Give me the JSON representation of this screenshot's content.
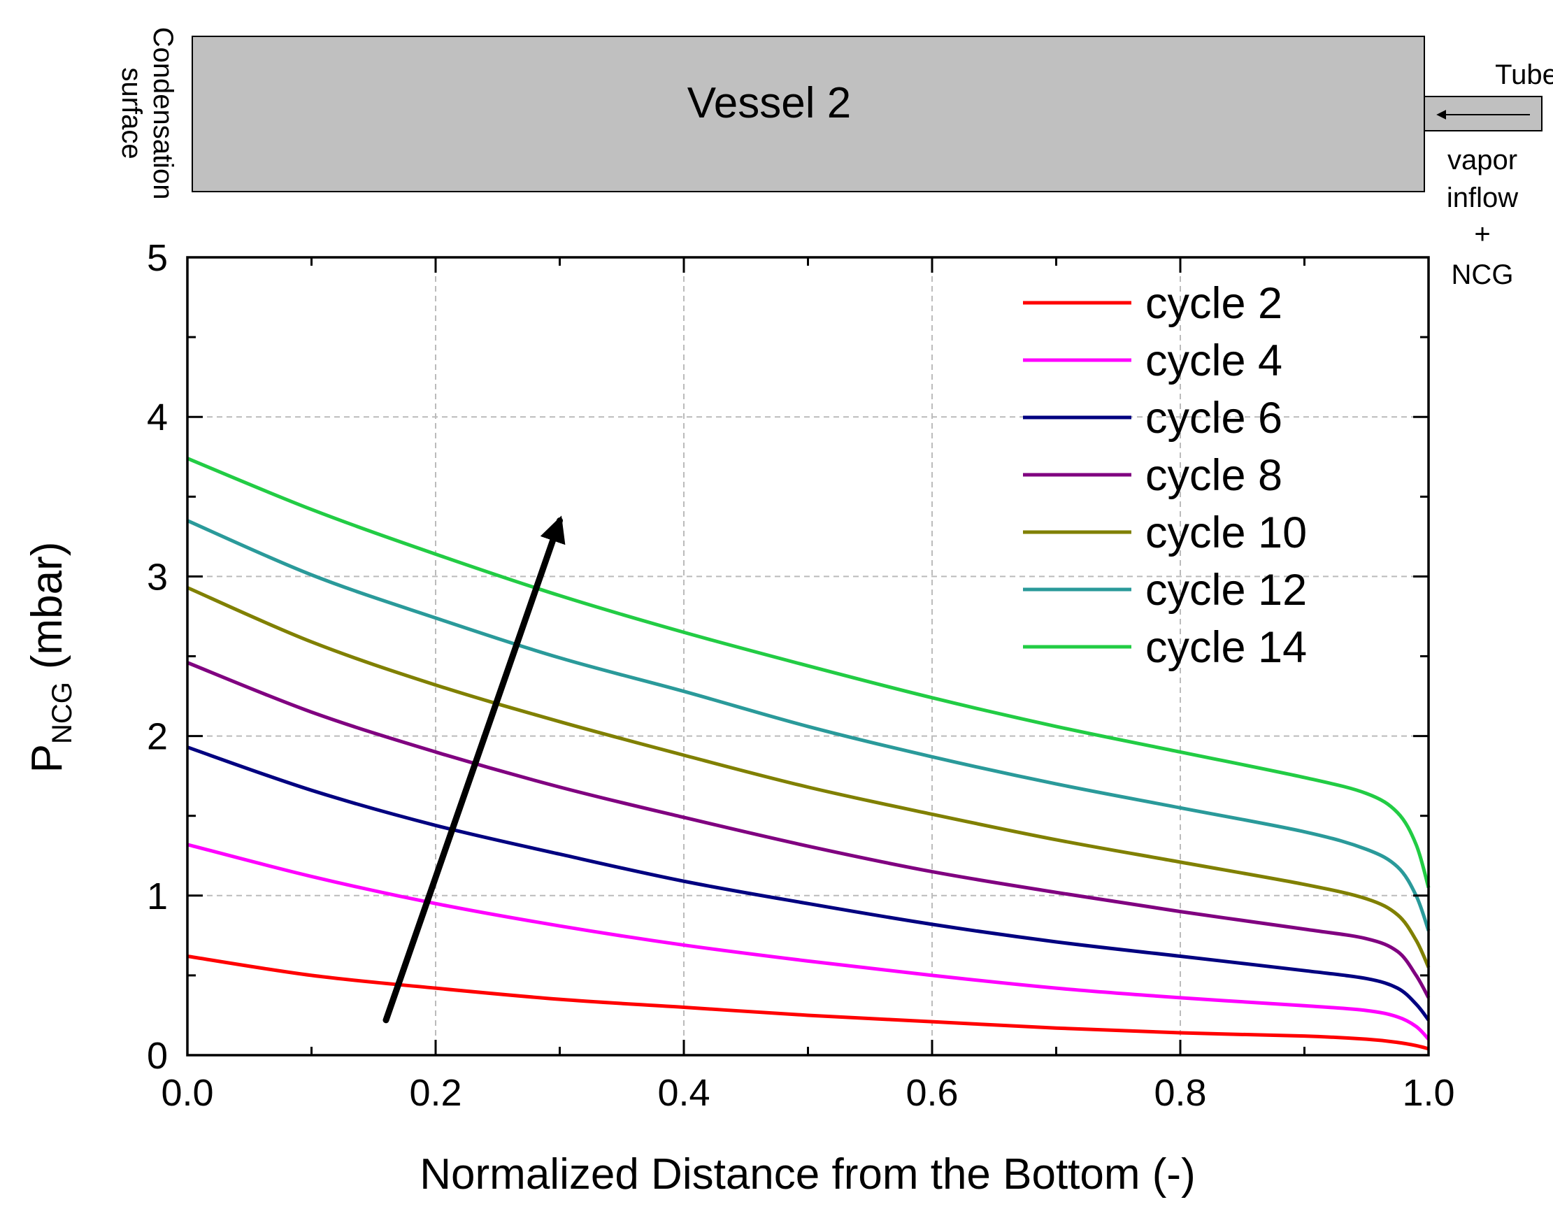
{
  "diagram": {
    "vessel_label": "Vessel 2",
    "condensation_line1": "Condensation",
    "condensation_line2": "surface",
    "tube_label": "Tube",
    "inflow_lines": [
      "vapor",
      "inflow",
      "+",
      "NCG"
    ],
    "colors": {
      "vessel_fill": "#c0c0c0",
      "vessel_stroke": "#000000"
    }
  },
  "chart_data": {
    "type": "line",
    "title": "",
    "xlabel": "Normalized Distance from the Bottom (-)",
    "ylabel_main": "P",
    "ylabel_sub": "NCG",
    "ylabel_unit": "(mbar)",
    "xlim": [
      0,
      1
    ],
    "ylim": [
      0,
      5
    ],
    "x_ticks": [
      "0.0",
      "0.2",
      "0.4",
      "0.6",
      "0.8",
      "1.0"
    ],
    "y_ticks": [
      "0",
      "1",
      "2",
      "3",
      "4",
      "5"
    ],
    "grid": true,
    "legend_position": "top-right",
    "x": [
      0.0,
      0.1,
      0.2,
      0.3,
      0.4,
      0.5,
      0.6,
      0.7,
      0.8,
      0.9,
      0.95,
      0.975,
      0.99,
      1.0
    ],
    "series": [
      {
        "name": "cycle 2",
        "color": "#ff0000",
        "values": [
          0.62,
          0.5,
          0.42,
          0.35,
          0.3,
          0.25,
          0.21,
          0.17,
          0.14,
          0.12,
          0.1,
          0.08,
          0.06,
          0.04
        ]
      },
      {
        "name": "cycle 4",
        "color": "#ff00ff",
        "values": [
          1.32,
          1.12,
          0.95,
          0.81,
          0.69,
          0.59,
          0.5,
          0.42,
          0.36,
          0.31,
          0.28,
          0.24,
          0.18,
          0.1
        ]
      },
      {
        "name": "cycle 6",
        "color": "#000080",
        "values": [
          1.93,
          1.66,
          1.44,
          1.26,
          1.09,
          0.95,
          0.82,
          0.71,
          0.62,
          0.53,
          0.48,
          0.42,
          0.32,
          0.22
        ]
      },
      {
        "name": "cycle 8",
        "color": "#800080",
        "values": [
          2.46,
          2.15,
          1.9,
          1.68,
          1.49,
          1.31,
          1.15,
          1.02,
          0.9,
          0.79,
          0.73,
          0.65,
          0.5,
          0.36
        ]
      },
      {
        "name": "cycle 10",
        "color": "#808000",
        "values": [
          2.93,
          2.59,
          2.32,
          2.09,
          1.88,
          1.68,
          1.51,
          1.35,
          1.21,
          1.07,
          0.98,
          0.88,
          0.72,
          0.55
        ]
      },
      {
        "name": "cycle 12",
        "color": "#2a9a9a",
        "values": [
          3.35,
          3.01,
          2.74,
          2.49,
          2.28,
          2.06,
          1.87,
          1.7,
          1.55,
          1.4,
          1.29,
          1.18,
          1.0,
          0.78
        ]
      },
      {
        "name": "cycle 14",
        "color": "#22cc44",
        "values": [
          3.74,
          3.42,
          3.14,
          2.88,
          2.65,
          2.44,
          2.24,
          2.06,
          1.9,
          1.74,
          1.64,
          1.52,
          1.32,
          1.05
        ]
      }
    ],
    "annotation_arrow": {
      "from": [
        0.16,
        0.22
      ],
      "to": [
        0.3,
        3.35
      ],
      "direction": "increasing cycle"
    }
  }
}
